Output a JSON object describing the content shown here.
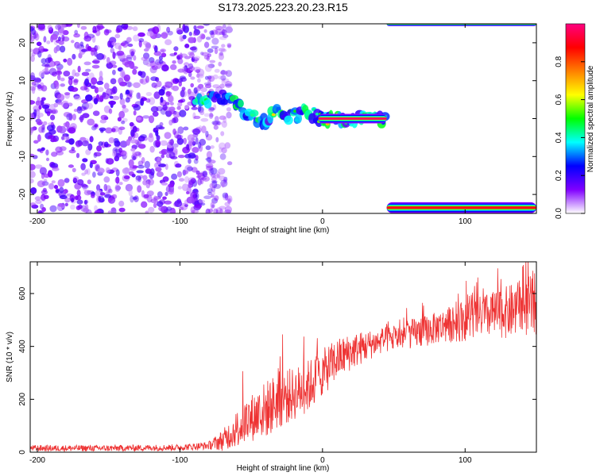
{
  "title": "S173.2025.223.20.23.R15",
  "colors": {
    "snr_line": "#ee3333",
    "frame": "#000000",
    "background": "#ffffff"
  },
  "chart_data": [
    {
      "type": "heatmap",
      "name": "spectrogram",
      "xlabel": "Height of straight line (km)",
      "ylabel": "Frequency (Hz)",
      "xlim": [
        -205,
        150
      ],
      "ylim": [
        -25,
        25
      ],
      "xticks": [
        -200,
        -100,
        0,
        100
      ],
      "yticks": [
        -20,
        -10,
        0,
        10,
        20
      ],
      "colorbar": {
        "label": "Normalized spectral amplitude",
        "range": [
          0,
          1
        ],
        "ticks": [
          "0.0",
          "0.2",
          "0.4",
          "0.6",
          "0.8"
        ],
        "colormap": [
          "#ffffff",
          "#8000ff",
          "#0000ff",
          "#00ffff",
          "#00ff00",
          "#ffff00",
          "#ff8000",
          "#ff0000",
          "#ff0080"
        ]
      },
      "features": [
        {
          "region": "noise",
          "x_range": [
            -205,
            -75
          ],
          "f_range": [
            -25,
            25
          ],
          "amplitude": 0.08
        },
        {
          "region": "meteor_trace",
          "points": [
            [
              -90,
              4
            ],
            [
              -78,
              5
            ],
            [
              -70,
              6
            ],
            [
              -62,
              4
            ],
            [
              -55,
              2
            ],
            [
              -48,
              0
            ],
            [
              -40,
              -1
            ],
            [
              -32,
              2
            ],
            [
              -25,
              1
            ],
            [
              -18,
              1
            ],
            [
              -12,
              3
            ],
            [
              -6,
              1
            ],
            [
              0,
              0
            ],
            [
              45,
              0
            ]
          ],
          "amplitude": 0.4
        },
        {
          "region": "carrier",
          "x_range": [
            -3,
            45
          ],
          "frequency": 0,
          "amplitude": 1.0
        },
        {
          "region": "lower_band",
          "x_range": [
            45,
            150
          ],
          "frequency": -23.5,
          "amplitude": 0.85
        },
        {
          "region": "upper_band",
          "x_range": [
            45,
            150
          ],
          "frequency": 25,
          "amplitude": 0.3
        }
      ]
    },
    {
      "type": "line",
      "name": "snr",
      "xlabel": "Height of straight line (km)",
      "ylabel": "SNR (10 * v/v)",
      "xlim": [
        -205,
        150
      ],
      "ylim": [
        0,
        720
      ],
      "xticks": [
        -200,
        -100,
        0,
        100
      ],
      "yticks": [
        0,
        200,
        400,
        600
      ],
      "envelope_x": [
        -205,
        -150,
        -100,
        -80,
        -70,
        -60,
        -50,
        -40,
        -30,
        -20,
        -10,
        0,
        10,
        20,
        30,
        40,
        50,
        60,
        70,
        80,
        90,
        100,
        110,
        120,
        130,
        140,
        150
      ],
      "envelope_mean": [
        15,
        15,
        18,
        25,
        45,
        90,
        130,
        160,
        200,
        220,
        250,
        300,
        350,
        380,
        400,
        420,
        430,
        445,
        455,
        470,
        485,
        500,
        510,
        520,
        530,
        545,
        560
      ],
      "noise_amplitude": [
        12,
        12,
        12,
        15,
        40,
        70,
        90,
        110,
        110,
        100,
        100,
        90,
        80,
        70,
        60,
        50,
        50,
        55,
        60,
        60,
        70,
        80,
        80,
        90,
        100,
        110,
        120
      ]
    }
  ]
}
